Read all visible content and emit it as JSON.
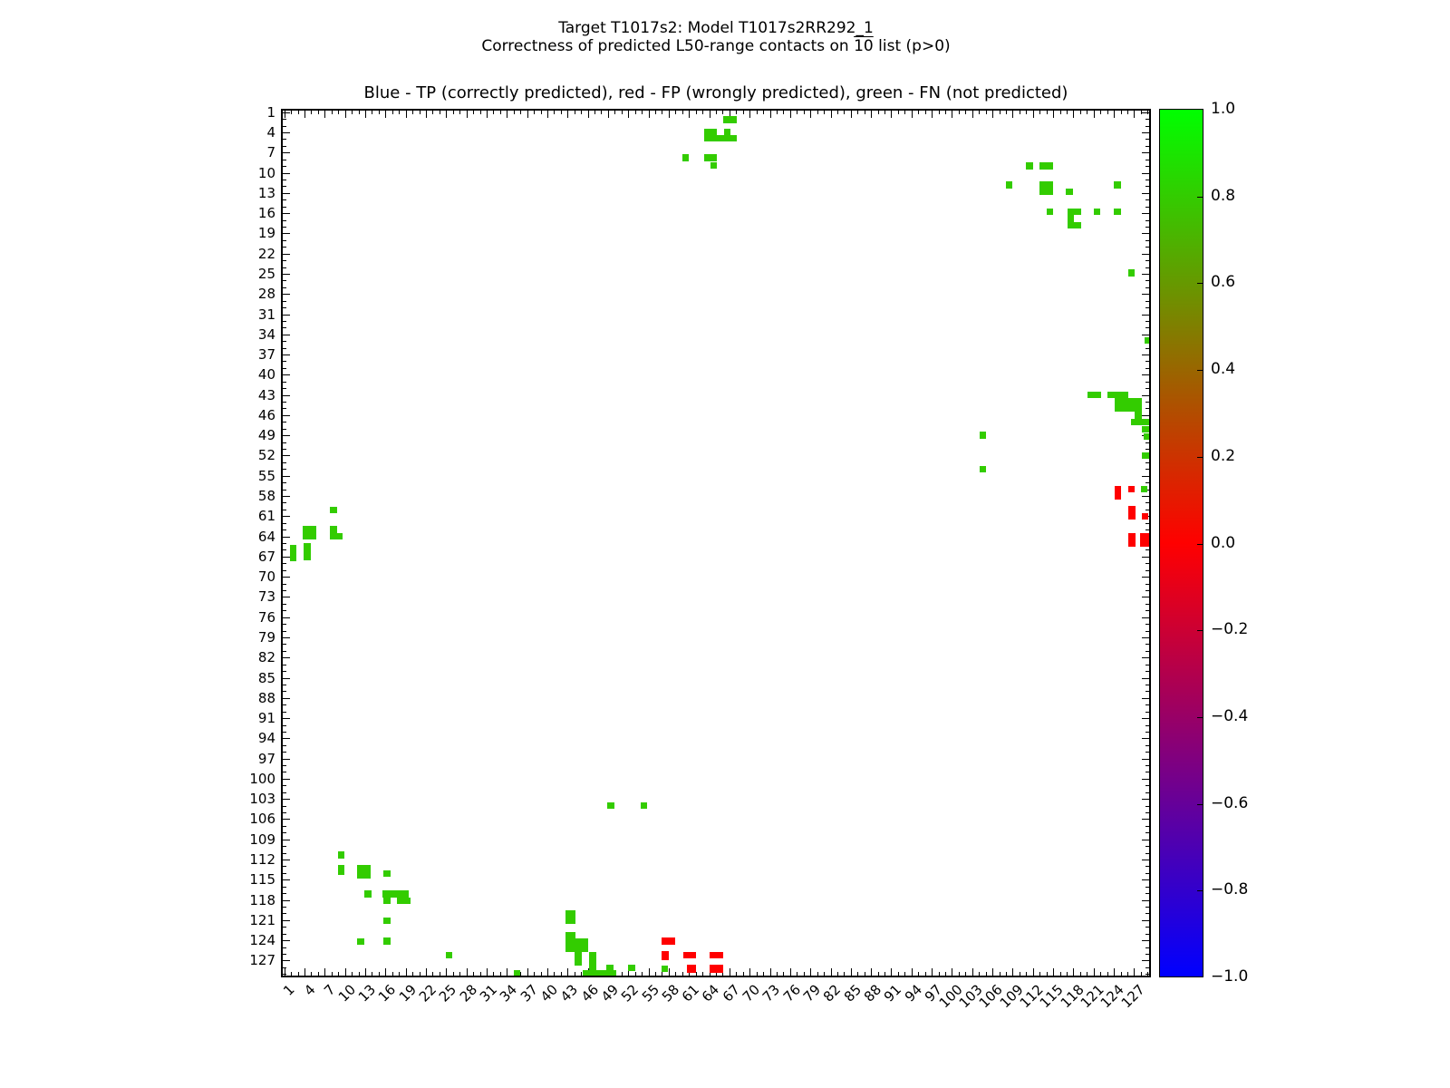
{
  "header": {
    "line1": "Target T1017s2: Model T1017s2RR292_1",
    "line2_prefix": "Correctness of predicted L50-range contacts on ",
    "line2_overline": "10",
    "line2_suffix": " list (p>0)"
  },
  "chart_data": {
    "type": "heatmap",
    "title": "Blue - TP (correctly predicted), red - FP (wrongly predicted), green - FN (not predicted)",
    "x_range": [
      0.5,
      129.5
    ],
    "y_range": [
      0.5,
      129.5
    ],
    "y_inverted": true,
    "grid": false,
    "x_ticks": [
      1,
      4,
      7,
      10,
      13,
      16,
      19,
      22,
      25,
      28,
      31,
      34,
      37,
      40,
      43,
      46,
      49,
      52,
      55,
      58,
      61,
      64,
      67,
      70,
      73,
      76,
      79,
      82,
      85,
      88,
      91,
      94,
      97,
      100,
      103,
      106,
      109,
      112,
      115,
      118,
      121,
      124,
      127
    ],
    "y_ticks": [
      1,
      4,
      7,
      10,
      13,
      16,
      19,
      22,
      25,
      28,
      31,
      34,
      37,
      40,
      43,
      46,
      49,
      52,
      55,
      58,
      61,
      64,
      67,
      70,
      73,
      76,
      79,
      82,
      85,
      88,
      91,
      94,
      97,
      100,
      103,
      106,
      109,
      112,
      115,
      118,
      121,
      124,
      127
    ],
    "marker_colors": {
      "green": "#33cc00",
      "red": "#ff0000"
    },
    "green_points": [
      [
        67.1,
        2.1,
        2,
        1
      ],
      [
        64.2,
        4.4,
        2,
        2
      ],
      [
        66.7,
        4.4,
        1,
        2
      ],
      [
        66.6,
        4.9,
        3,
        1
      ],
      [
        60.5,
        7.8,
        1,
        1
      ],
      [
        64.2,
        7.8,
        2,
        1
      ],
      [
        64.7,
        8.9,
        1,
        1
      ],
      [
        111.5,
        9,
        1,
        1
      ],
      [
        114,
        9,
        2,
        1
      ],
      [
        108.5,
        11.8,
        1,
        1
      ],
      [
        114,
        12.3,
        2,
        2
      ],
      [
        117.4,
        12.8,
        1,
        1
      ],
      [
        124.5,
        11.8,
        1,
        1
      ],
      [
        114.5,
        15.8,
        1,
        1
      ],
      [
        118.1,
        15.8,
        2,
        1
      ],
      [
        117.6,
        16.8,
        1,
        1
      ],
      [
        118.1,
        17.8,
        2,
        1
      ],
      [
        121.5,
        15.8,
        1,
        1
      ],
      [
        124.5,
        15.8,
        1,
        1
      ],
      [
        126.6,
        24.9,
        1,
        1
      ],
      [
        129.0,
        34.9,
        1,
        1
      ],
      [
        121.1,
        43,
        2,
        1
      ],
      [
        124.6,
        43,
        3,
        1
      ],
      [
        126.1,
        44.5,
        4,
        2
      ],
      [
        127.6,
        46,
        1,
        1
      ],
      [
        128,
        47,
        3,
        1
      ],
      [
        128.9,
        48.1,
        1.4,
        1
      ],
      [
        128.9,
        49.2,
        1,
        1
      ],
      [
        128.7,
        52,
        1,
        1
      ],
      [
        104.6,
        49,
        1,
        1
      ],
      [
        104.6,
        54,
        1,
        1
      ],
      [
        128.5,
        57,
        1,
        1
      ],
      [
        8.3,
        60.1,
        1,
        1
      ],
      [
        4.7,
        63.5,
        2,
        2
      ],
      [
        4.4,
        66.3,
        1,
        2.5
      ],
      [
        2.3,
        66.5,
        1,
        2.4
      ],
      [
        8.3,
        63.5,
        1,
        2
      ],
      [
        9.1,
        64,
        1,
        1
      ],
      [
        49.4,
        104,
        1,
        1
      ],
      [
        54.3,
        104,
        1,
        1
      ],
      [
        9.4,
        111.3,
        1,
        1
      ],
      [
        9.4,
        113.5,
        1,
        1.5
      ],
      [
        12.8,
        113.8,
        2,
        2
      ],
      [
        16.2,
        114.1,
        1,
        1
      ],
      [
        13.4,
        117.1,
        1,
        1
      ],
      [
        17.5,
        117.1,
        4,
        1
      ],
      [
        16.2,
        118.1,
        1,
        1
      ],
      [
        18.7,
        118.1,
        2,
        1
      ],
      [
        16.2,
        121.1,
        1,
        1
      ],
      [
        12.3,
        124.2,
        1,
        1
      ],
      [
        16.2,
        124.1,
        1,
        1
      ],
      [
        25.4,
        126.2,
        1,
        1
      ],
      [
        35.5,
        128.9,
        1,
        1
      ],
      [
        43.4,
        120.6,
        1.5,
        2
      ],
      [
        43.4,
        124.2,
        1.5,
        3
      ],
      [
        45.1,
        124.7,
        2,
        2
      ],
      [
        44.6,
        126.7,
        1,
        2
      ],
      [
        46.7,
        127.2,
        1,
        3
      ],
      [
        47.7,
        128.8,
        5,
        0.8
      ],
      [
        49.3,
        128.1,
        1,
        1
      ],
      [
        52.5,
        128.1,
        1,
        1
      ],
      [
        57.4,
        128.2,
        1,
        1
      ]
    ],
    "red_points": [
      [
        124.6,
        57.5,
        1,
        2
      ],
      [
        126.6,
        57,
        1,
        1
      ],
      [
        126.7,
        60.5,
        1,
        2
      ],
      [
        128.6,
        61,
        1,
        1
      ],
      [
        126.7,
        64.5,
        1,
        2
      ],
      [
        128.6,
        64.5,
        1.3,
        2
      ],
      [
        58,
        124.1,
        2,
        1
      ],
      [
        57.5,
        126.3,
        1,
        1.3
      ],
      [
        61.1,
        126.2,
        2,
        1
      ],
      [
        65.1,
        126.2,
        2,
        1
      ],
      [
        61.4,
        128.2,
        1.3,
        1.3
      ],
      [
        65.1,
        128.2,
        2,
        1.3
      ]
    ],
    "colorbar": {
      "tick_labels": [
        "1.0",
        "0.8",
        "0.6",
        "0.4",
        "0.2",
        "0.0",
        "−0.2",
        "−0.4",
        "−0.6",
        "−0.8",
        "−1.0"
      ],
      "top_color": "#00ff00",
      "mid_color": "#ff0000",
      "bottom_color": "#0000ff"
    }
  }
}
